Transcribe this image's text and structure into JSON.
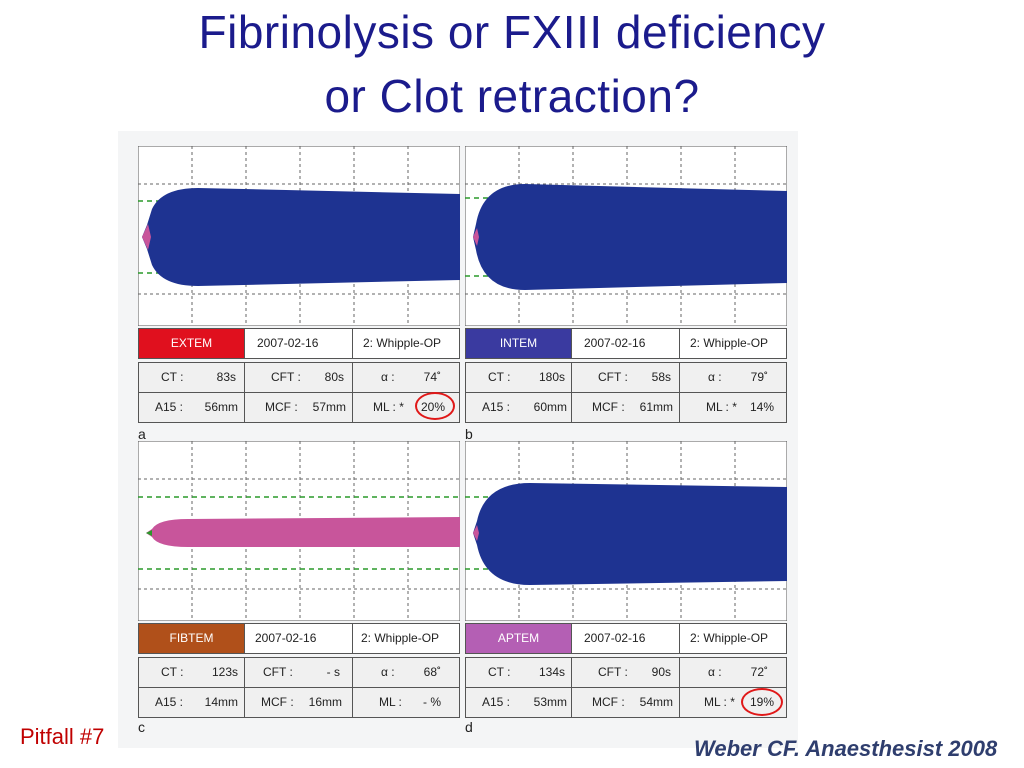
{
  "title_line1": "Fibrinolysis or FXIII deficiency",
  "title_line2": "or Clot retraction?",
  "pitfall": "Pitfall #7",
  "citation": "Weber CF. Anaesthesist 2008",
  "colors": {
    "extem": "#e0101e",
    "intem": "#3a3aa0",
    "fibtem": "#b0501a",
    "aptem": "#b45fb4",
    "trace_blue": "#1e3391",
    "trace_pink": "#c8559b",
    "green_dash": "#2a9a2a",
    "circle": "#e01818"
  },
  "panels": {
    "a": {
      "letter": "a",
      "test": "EXTEM",
      "date": "2007-02-16",
      "op": "2: Whipple-OP",
      "ct_label": "CT :",
      "ct": "83s",
      "cft_label": "CFT :",
      "cft": "80s",
      "alpha_label": "α :",
      "alpha": "74˚",
      "a15_label": "A15 :",
      "a15": "56mm",
      "mcf_label": "MCF :",
      "mcf": "57mm",
      "ml_label": "ML : *",
      "ml": "20%"
    },
    "b": {
      "letter": "b",
      "test": "INTEM",
      "date": "2007-02-16",
      "op": "2: Whipple-OP",
      "ct_label": "CT :",
      "ct": "180s",
      "cft_label": "CFT :",
      "cft": "58s",
      "alpha_label": "α :",
      "alpha": "79˚",
      "a15_label": "A15 :",
      "a15": "60mm",
      "mcf_label": "MCF :",
      "mcf": "61mm",
      "ml_label": "ML : *",
      "ml": "14%"
    },
    "c": {
      "letter": "c",
      "test": "FIBTEM",
      "date": "2007-02-16",
      "op": "2: Whipple-OP",
      "ct_label": "CT :",
      "ct": "123s",
      "cft_label": "CFT :",
      "cft": "- s",
      "alpha_label": "α :",
      "alpha": "68˚",
      "a15_label": "A15 :",
      "a15": "14mm",
      "mcf_label": "MCF :",
      "mcf": "16mm",
      "ml_label": "ML :",
      "ml": "- %"
    },
    "d": {
      "letter": "d",
      "test": "APTEM",
      "date": "2007-02-16",
      "op": "2: Whipple-OP",
      "ct_label": "CT :",
      "ct": "134s",
      "cft_label": "CFT :",
      "cft": "90s",
      "alpha_label": "α :",
      "alpha": "72˚",
      "a15_label": "A15 :",
      "a15": "53mm",
      "mcf_label": "MCF :",
      "mcf": "54mm",
      "ml_label": "ML : *",
      "ml": "19%"
    }
  }
}
